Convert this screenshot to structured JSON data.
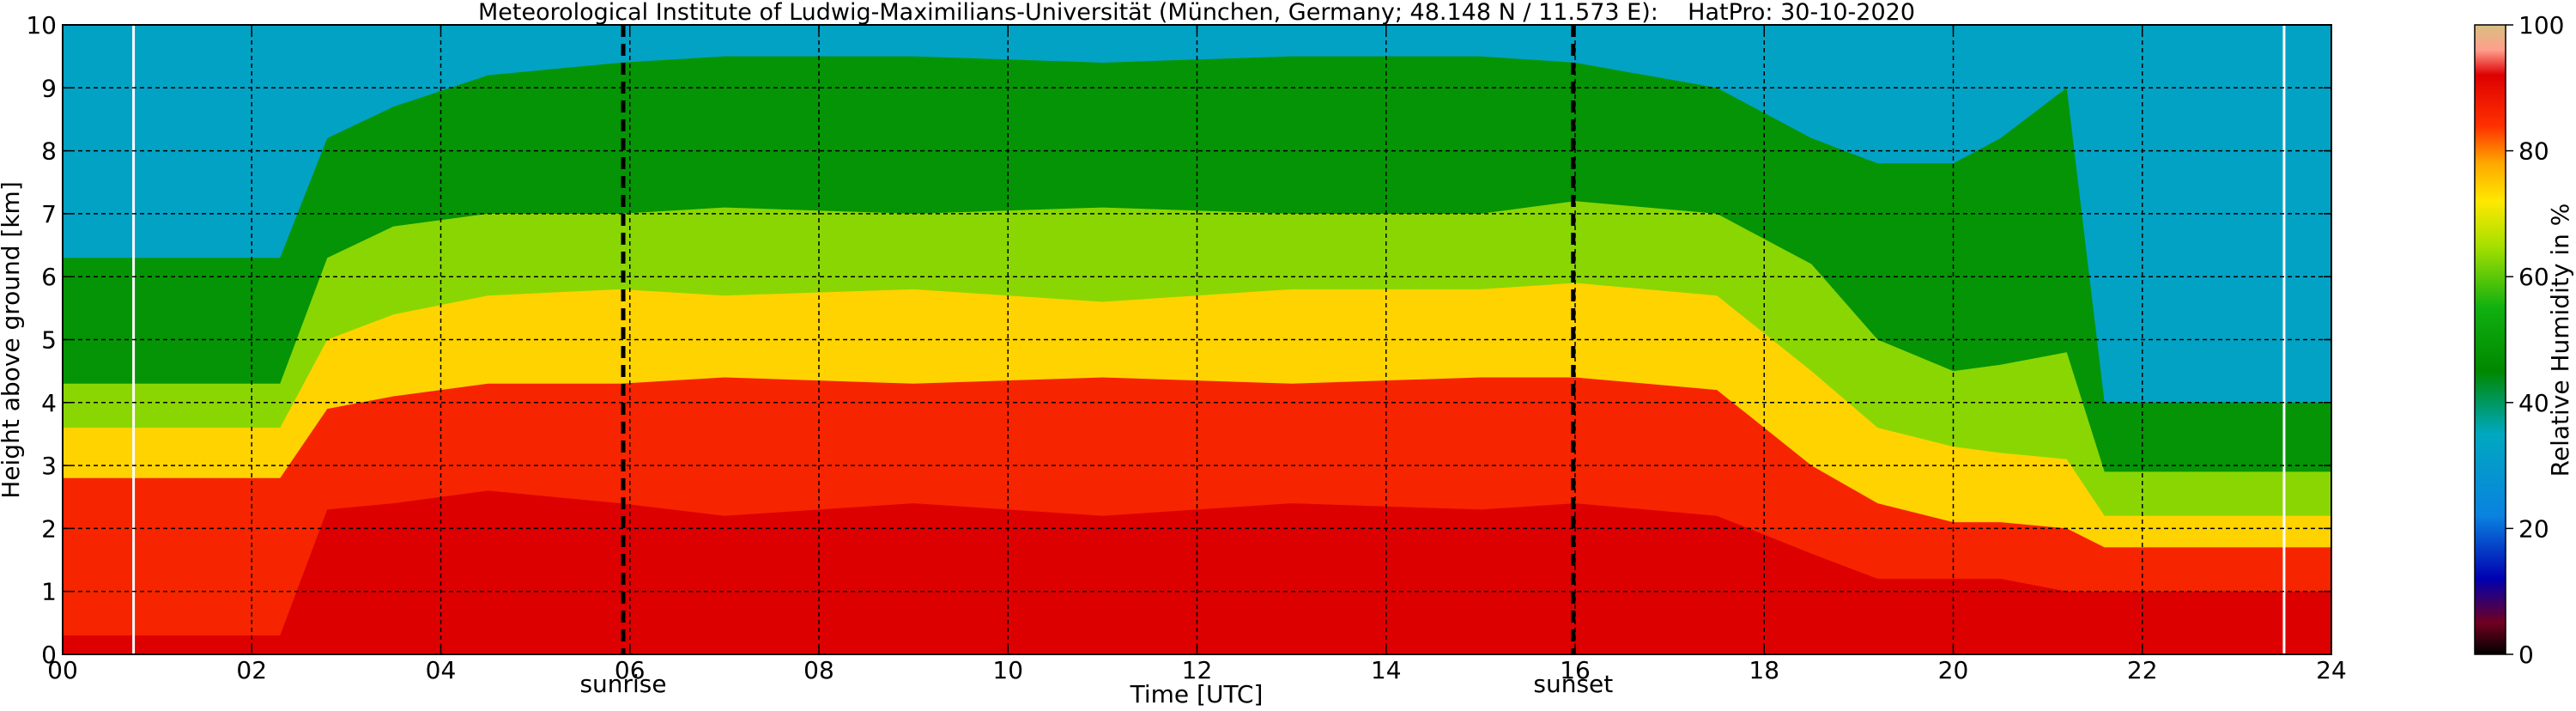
{
  "chart_data": {
    "type": "heatmap",
    "title": "Meteorological Institute of Ludwig-Maximilians-Universität (München, Germany; 48.148 N / 11.573 E):    HatPro: 30-10-2020",
    "xlabel": "Time [UTC]",
    "ylabel": "Height above ground [km]",
    "xlim": [
      0,
      24
    ],
    "ylim": [
      0,
      10
    ],
    "x_ticks": [
      "00",
      "02",
      "04",
      "06",
      "08",
      "10",
      "12",
      "14",
      "16",
      "18",
      "20",
      "22",
      "24"
    ],
    "y_ticks": [
      "0",
      "1",
      "2",
      "3",
      "4",
      "5",
      "6",
      "7",
      "8",
      "9",
      "10"
    ],
    "grid": true,
    "colorbar": {
      "label": "Relative Humidity in %",
      "range": [
        0,
        100
      ],
      "ticks": [
        "0",
        "20",
        "40",
        "60",
        "80",
        "100"
      ],
      "stops": [
        {
          "value": 0,
          "color": "#000000"
        },
        {
          "value": 5,
          "color": "#700020"
        },
        {
          "value": 12,
          "color": "#0000b0"
        },
        {
          "value": 22,
          "color": "#0a82e0"
        },
        {
          "value": 35,
          "color": "#00a8c0"
        },
        {
          "value": 45,
          "color": "#008800"
        },
        {
          "value": 55,
          "color": "#10b010"
        },
        {
          "value": 65,
          "color": "#a8e000"
        },
        {
          "value": 72,
          "color": "#ffe800"
        },
        {
          "value": 78,
          "color": "#ffa800"
        },
        {
          "value": 84,
          "color": "#ff3000"
        },
        {
          "value": 92,
          "color": "#dd0000"
        },
        {
          "value": 96,
          "color": "#ff9e8c"
        },
        {
          "value": 100,
          "color": "#d8c080"
        }
      ]
    },
    "events": [
      {
        "label": "sunrise",
        "time": 5.93
      },
      {
        "label": "sunset",
        "time": 15.98
      }
    ],
    "white_markers": [
      0.75,
      23.5
    ],
    "rh_layer_boundaries_km": {
      "time": [
        0,
        2.3,
        2.8,
        3.5,
        4.5,
        5.9,
        7,
        9,
        11,
        13,
        15,
        16,
        17.5,
        18.5,
        19.2,
        20,
        20.5,
        21.2,
        21.6,
        24
      ],
      "rh95": [
        0.3,
        0.3,
        2.3,
        2.4,
        2.6,
        2.4,
        2.2,
        2.4,
        2.2,
        2.4,
        2.3,
        2.4,
        2.2,
        1.6,
        1.2,
        1.2,
        1.2,
        1.0,
        1.0,
        1.0
      ],
      "rh80": [
        2.8,
        2.8,
        3.9,
        4.1,
        4.3,
        4.3,
        4.4,
        4.3,
        4.4,
        4.3,
        4.4,
        4.4,
        4.2,
        3.0,
        2.4,
        2.1,
        2.1,
        2.0,
        1.7,
        1.7
      ],
      "rh70": [
        3.6,
        3.6,
        5.0,
        5.4,
        5.7,
        5.8,
        5.7,
        5.8,
        5.6,
        5.8,
        5.8,
        5.9,
        5.7,
        4.5,
        3.6,
        3.3,
        3.2,
        3.1,
        2.2,
        2.2
      ],
      "rh60": [
        4.3,
        4.3,
        6.3,
        6.8,
        7.0,
        7.0,
        7.1,
        7.0,
        7.1,
        7.0,
        7.0,
        7.2,
        7.0,
        6.2,
        5.0,
        4.5,
        4.6,
        4.8,
        2.9,
        2.9
      ],
      "rh45": [
        6.3,
        6.3,
        8.2,
        8.7,
        9.2,
        9.4,
        9.5,
        9.5,
        9.4,
        9.5,
        9.5,
        9.4,
        9.0,
        8.2,
        7.8,
        7.8,
        8.2,
        9.0,
        4.0,
        4.0
      ]
    }
  }
}
